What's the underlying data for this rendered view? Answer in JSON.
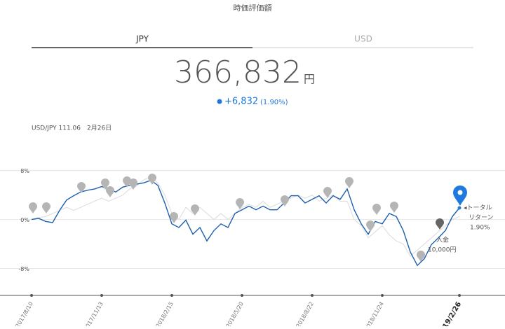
{
  "header": {
    "title": "時価評価額",
    "tabs": [
      "JPY",
      "USD"
    ],
    "amount": "366,832",
    "amount_unit": "円",
    "change": "+6,832",
    "change_pct": "(1.90%)",
    "fx": "USD/JPY 111.06　2月26日"
  },
  "chart_data": {
    "type": "line",
    "categories": [
      "2017/8/10",
      null,
      null,
      null,
      null,
      null,
      null,
      null,
      null,
      null,
      "2017/11/13",
      null,
      null,
      null,
      null,
      null,
      null,
      null,
      null,
      null,
      "2018/2/15",
      null,
      null,
      null,
      null,
      null,
      null,
      null,
      null,
      null,
      "2018/5/20",
      null,
      null,
      null,
      null,
      null,
      null,
      null,
      null,
      null,
      "2018/8/22",
      null,
      null,
      null,
      null,
      null,
      null,
      null,
      null,
      null,
      "2018/11/24",
      null,
      null,
      null,
      null,
      null,
      null,
      null,
      null,
      null,
      null,
      "2019/2/26"
    ],
    "series": [
      {
        "color": "#dedede",
        "values": [
          0,
          0.3,
          0.5,
          1,
          1.5,
          2,
          1.5,
          2,
          2.5,
          3,
          3.5,
          3,
          3.5,
          4,
          5,
          5.5,
          6.5,
          7,
          6,
          4,
          1,
          0,
          2,
          1,
          2,
          1,
          0,
          1,
          0,
          1,
          2,
          2.5,
          2,
          3,
          2,
          2.5,
          3,
          3.5,
          4,
          3.5,
          4,
          3,
          3.5,
          4,
          3,
          3,
          0,
          -1,
          -3,
          -2,
          -1,
          -2.5,
          -3.5,
          -4,
          -6,
          -5,
          -4,
          -3,
          -2,
          -1,
          0,
          0.5
        ]
      },
      {
        "color": "#1f5fae",
        "values": [
          0,
          0.2,
          -0.3,
          -0.5,
          1.5,
          3.2,
          3.9,
          4.5,
          4.8,
          5.0,
          5.4,
          5.0,
          4.5,
          5.3,
          5.6,
          5.8,
          6.0,
          6.4,
          5.6,
          2.7,
          -0.7,
          -1.3,
          -0.1,
          -2.4,
          -1.3,
          -3.5,
          -1.8,
          -0.7,
          -1.3,
          1.0,
          1.6,
          2.2,
          1.6,
          2.2,
          1.6,
          1.6,
          2.7,
          3.9,
          3.9,
          2.7,
          3.3,
          3.9,
          2.7,
          3.9,
          3.3,
          5.0,
          1.6,
          -0.7,
          -2.4,
          -0.3,
          -0.7,
          1.0,
          0.5,
          -1.8,
          -5.3,
          -7.5,
          -6.4,
          -4.1,
          -3.0,
          -1.8,
          0.5,
          1.9
        ]
      }
    ],
    "ylim": [
      -12.4,
      9.8
    ],
    "yticks": [
      {
        "value": 8,
        "label": "8%"
      },
      {
        "value": 0,
        "label": "0%"
      },
      {
        "value": -8,
        "label": "-8%"
      }
    ],
    "grid": true,
    "annotations": {
      "return_label_1": "◂トータル",
      "return_label_2": "リターン",
      "return_value": "1.90%",
      "deposit_label": "入金",
      "deposit_value": "10,000円"
    }
  }
}
